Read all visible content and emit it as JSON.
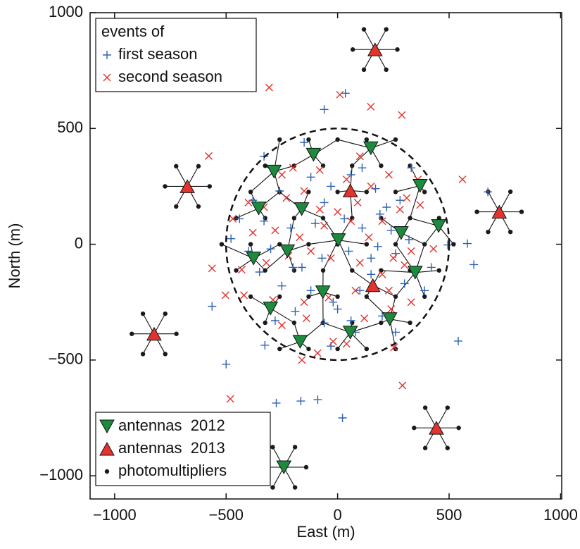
{
  "chart_data": {
    "type": "scatter",
    "xlabel": "East (m)",
    "ylabel": "North (m)",
    "xlim": [
      -1110,
      1005
    ],
    "ylim": [
      -1100,
      1000
    ],
    "xticks": [
      {
        "value": -1000,
        "label": "−1000"
      },
      {
        "value": -500,
        "label": "−500"
      },
      0,
      500,
      1000
    ],
    "yticks": [
      {
        "value": -1000,
        "label": "−1000"
      },
      {
        "value": -500,
        "label": "−500"
      },
      0,
      500,
      1000
    ],
    "legend_title": "events of",
    "series": [
      {
        "name": "first season",
        "color": "#2d62b4",
        "marker": "plus",
        "legend": "upper left",
        "x": [
          35,
          -60,
          -478,
          -563,
          -326,
          -500,
          -275,
          -165,
          -89,
          22,
          541,
          611,
          582,
          674,
          494,
          -330,
          -150,
          60,
          170,
          330,
          -440,
          -380,
          -260,
          -120,
          -30,
          110,
          220,
          280,
          -330,
          -210,
          -100,
          30,
          110,
          190,
          240,
          320,
          -400,
          -300,
          -200,
          -70,
          50,
          150,
          260,
          420,
          -350,
          -250,
          -120,
          -20,
          100,
          300,
          390,
          -280,
          -190,
          -60,
          60,
          200,
          260,
          -30,
          80,
          150,
          -160,
          0,
          180,
          -60
        ],
        "values": [
          652,
          582,
          24,
          -268,
          -436,
          -518,
          -686,
          -677,
          -671,
          -750,
          -418,
          -88,
          3,
          226,
          -3,
          380,
          440,
          300,
          240,
          330,
          110,
          190,
          230,
          290,
          250,
          330,
          160,
          190,
          100,
          70,
          90,
          110,
          70,
          130,
          60,
          20,
          -30,
          -20,
          -100,
          -60,
          -30,
          -60,
          -40,
          -100,
          -120,
          -180,
          -200,
          -250,
          -200,
          -170,
          -200,
          -330,
          -290,
          -340,
          -330,
          -310,
          -380,
          -440,
          -380,
          -130,
          -100,
          -280,
          -10,
          180
        ]
      },
      {
        "name": "second season",
        "color": "#e2332e",
        "marker": "cross",
        "legend": "upper left",
        "x": [
          -307,
          -578,
          149,
          10,
          288,
          560,
          -563,
          -481,
          291,
          -503,
          253,
          -250,
          -200,
          -80,
          40,
          100,
          230,
          310,
          360,
          -400,
          -330,
          -230,
          -150,
          -80,
          0,
          90,
          150,
          200,
          280,
          370,
          -470,
          -380,
          -280,
          -170,
          -60,
          60,
          140,
          250,
          330,
          430,
          -430,
          -320,
          -220,
          -120,
          -30,
          100,
          200,
          300,
          -420,
          -290,
          -150,
          -40,
          80,
          230,
          330,
          -250,
          -140,
          -20,
          120,
          240,
          -90,
          -160,
          40
        ],
        "values": [
          677,
          381,
          594,
          646,
          558,
          280,
          -104,
          -668,
          -610,
          -220,
          -445,
          300,
          330,
          320,
          280,
          380,
          300,
          200,
          280,
          180,
          160,
          200,
          230,
          150,
          140,
          180,
          250,
          100,
          150,
          170,
          110,
          50,
          60,
          30,
          80,
          100,
          30,
          -60,
          -30,
          -20,
          -110,
          -80,
          -50,
          -30,
          -60,
          -80,
          -130,
          -90,
          -220,
          -240,
          -250,
          -230,
          -200,
          -200,
          -250,
          -350,
          -320,
          -420,
          -320,
          -280,
          -470,
          -500,
          -430
        ]
      },
      {
        "name": "antennas  2012",
        "color": "#1e8a3e",
        "marker": "triangle-down",
        "legend": "lower left",
        "x": [
          -285,
          -108,
          149,
          370,
          -354,
          -161,
          3,
          285,
          453,
          -225,
          -377,
          -66,
          348,
          -301,
          234,
          57,
          -168,
          -241
        ],
        "values": [
          314,
          387,
          415,
          253,
          155,
          152,
          18,
          49,
          79,
          -30,
          -61,
          -207,
          -122,
          -277,
          -323,
          -381,
          -421,
          -963
        ]
      },
      {
        "name": "antennas  2013",
        "color": "#e2332e",
        "marker": "triangle-up",
        "legend": "lower left",
        "x": [
          168,
          -674,
          725,
          57,
          158,
          -823,
          443
        ],
        "values": [
          841,
          250,
          140,
          232,
          -177,
          -387,
          -793
        ]
      },
      {
        "name": "photomultipliers",
        "color": "#1a1a1a",
        "marker": "dot",
        "legend": "lower left",
        "x": [
          268,
          218,
          118,
          68,
          118,
          218,
          -574,
          -624,
          -724,
          -774,
          -724,
          -624,
          825,
          775,
          675,
          625,
          675,
          775,
          -723,
          -773,
          -873,
          -923,
          -873,
          -773,
          543,
          493,
          393,
          343,
          393,
          493,
          -141,
          -191,
          -291,
          -341,
          -291,
          -191,
          -520,
          -390,
          -260,
          -130,
          0,
          130,
          260,
          390,
          520,
          -455,
          -325,
          -195,
          -65,
          65,
          195,
          325,
          455,
          -455,
          -325,
          -195,
          -65,
          65,
          195,
          325,
          455,
          -390,
          -260,
          -130,
          0,
          130,
          260,
          390,
          -390,
          -260,
          -130,
          0,
          130,
          260,
          390,
          -325,
          -195,
          -65,
          65,
          195,
          325,
          -325,
          -195,
          -65,
          65,
          195,
          325,
          -260,
          -130,
          0,
          130,
          260,
          -260,
          -130,
          0,
          130,
          260
        ],
        "values": [
          841,
          928,
          928,
          841,
          754,
          754,
          250,
          337,
          337,
          250,
          163,
          163,
          140,
          227,
          227,
          140,
          53,
          53,
          -387,
          -300,
          -300,
          -387,
          -474,
          -474,
          -793,
          -706,
          -706,
          -793,
          -880,
          -880,
          -963,
          -876,
          -876,
          -963,
          -1050,
          -1050,
          0,
          0,
          0,
          0,
          0,
          0,
          0,
          0,
          0,
          113,
          113,
          113,
          113,
          113,
          113,
          113,
          113,
          -113,
          -113,
          -113,
          -113,
          -113,
          -113,
          -113,
          -113,
          226,
          226,
          226,
          226,
          226,
          226,
          226,
          -226,
          -226,
          -226,
          -226,
          -226,
          -226,
          -226,
          339,
          339,
          339,
          339,
          339,
          339,
          -339,
          -339,
          -339,
          -339,
          -339,
          -339,
          452,
          452,
          452,
          452,
          452,
          -452,
          -452,
          -452,
          -452,
          -452
        ]
      }
    ]
  }
}
